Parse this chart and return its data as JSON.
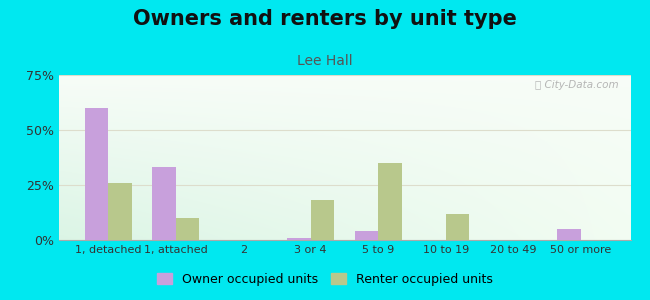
{
  "title": "Owners and renters by unit type",
  "subtitle": "Lee Hall",
  "categories": [
    "1, detached",
    "1, attached",
    "2",
    "3 or 4",
    "5 to 9",
    "10 to 19",
    "20 to 49",
    "50 or more"
  ],
  "owner_values": [
    60,
    33,
    0,
    1,
    4,
    0,
    0,
    5
  ],
  "renter_values": [
    26,
    10,
    0,
    18,
    35,
    12,
    0,
    0
  ],
  "owner_color": "#c8a0dc",
  "renter_color": "#b8c88c",
  "ylim": [
    0,
    75
  ],
  "yticks": [
    0,
    25,
    50,
    75
  ],
  "ytick_labels": [
    "0%",
    "25%",
    "50%",
    "75%"
  ],
  "figure_background": "#00e8f0",
  "title_fontsize": 15,
  "subtitle_fontsize": 10,
  "legend_label_owner": "Owner occupied units",
  "legend_label_renter": "Renter occupied units",
  "bar_width": 0.35,
  "grid_color": "#ddddcc"
}
